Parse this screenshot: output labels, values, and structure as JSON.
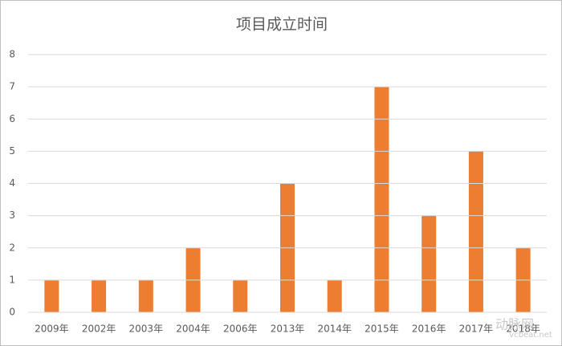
{
  "chart_data": {
    "type": "bar",
    "title": "项目成立时间",
    "categories": [
      "2009年",
      "2002年",
      "2003年",
      "2004年",
      "2006年",
      "2013年",
      "2014年",
      "2015年",
      "2016年",
      "2017年",
      "2018年"
    ],
    "values": [
      1,
      1,
      1,
      2,
      1,
      4,
      1,
      7,
      3,
      5,
      2
    ],
    "color": "#ed7d31",
    "ylim": [
      0,
      8
    ],
    "yticks": [
      0,
      1,
      2,
      3,
      4,
      5,
      6,
      7,
      8
    ],
    "grid": true,
    "watermark": "动脉网",
    "watermark_url": "vcbeat.net"
  }
}
